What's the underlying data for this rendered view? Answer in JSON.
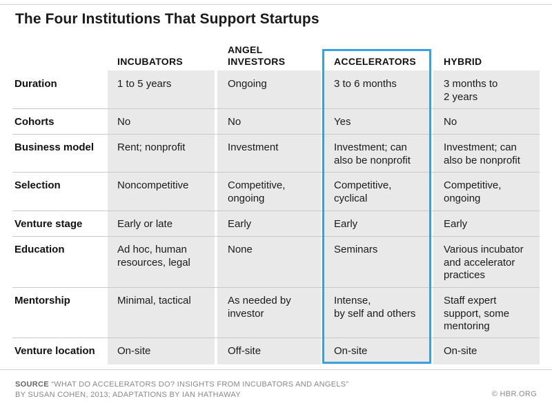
{
  "title": "The Four Institutions That Support Startups",
  "columns": [
    "INCUBATORS",
    "ANGEL\nINVESTORS",
    "ACCELERATORS",
    "HYBRID"
  ],
  "rows": [
    {
      "label": "Duration",
      "cells": [
        "1 to 5 years",
        "Ongoing",
        "3 to 6 months",
        "3 months to\n2 years"
      ]
    },
    {
      "label": "Cohorts",
      "cells": [
        "No",
        "No",
        "Yes",
        "No"
      ]
    },
    {
      "label": "Business model",
      "cells": [
        "Rent; nonprofit",
        "Investment",
        "Investment; can\nalso be nonprofit",
        "Investment; can\nalso be nonprofit"
      ]
    },
    {
      "label": "Selection",
      "cells": [
        "Noncompetitive",
        "Competitive,\nongoing",
        "Competitive,\ncyclical",
        "Competitive,\nongoing"
      ]
    },
    {
      "label": "Venture stage",
      "cells": [
        "Early or late",
        "Early",
        "Early",
        "Early"
      ]
    },
    {
      "label": "Education",
      "cells": [
        "Ad hoc, human\nresources, legal",
        "None",
        "Seminars",
        "Various incubator\nand accelerator\npractices"
      ]
    },
    {
      "label": "Mentorship",
      "cells": [
        "Minimal, tactical",
        "As needed by\ninvestor",
        "Intense,\nby self and others",
        "Staff expert\nsupport, some\nmentoring"
      ]
    },
    {
      "label": "Venture location",
      "cells": [
        "On-site",
        "Off-site",
        "On-site",
        "On-site"
      ]
    }
  ],
  "highlight_color": "#3aa0e0",
  "source": {
    "label": "SOURCE",
    "text": "“WHAT DO ACCELERATORS DO? INSIGHTS FROM INCUBATORS AND ANGELS”",
    "text2": "BY SUSAN COHEN, 2013; ADAPTATIONS BY IAN HATHAWAY"
  },
  "copyright": "© HBR.ORG"
}
